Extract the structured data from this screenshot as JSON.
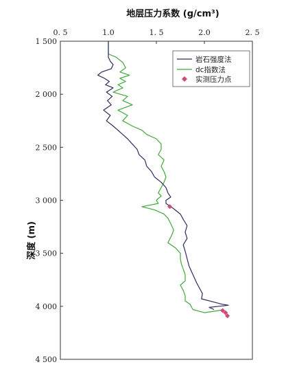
{
  "chart_data": {
    "type": "line",
    "title": "地层压力系数 (g/cm³)",
    "ylabel": "深度 (m)",
    "xlabel_position": "top",
    "xlim": [
      0.5,
      2.5
    ],
    "ylim": [
      1500,
      4500
    ],
    "y_inverted": true,
    "grid": false,
    "legend_position": "top-right",
    "x_ticks": [
      {
        "value": 0.5,
        "label": "0. 5"
      },
      {
        "value": 1.0,
        "label": "1.0"
      },
      {
        "value": 1.5,
        "label": "1. 5"
      },
      {
        "value": 2.0,
        "label": "2.0"
      },
      {
        "value": 2.5,
        "label": "2. 5"
      }
    ],
    "y_ticks": [
      {
        "value": 1500,
        "label": "1 500"
      },
      {
        "value": 2000,
        "label": "2 000"
      },
      {
        "value": 2500,
        "label": "2 500"
      },
      {
        "value": 3000,
        "label": "3 000"
      },
      {
        "value": 3500,
        "label": "3 500"
      },
      {
        "value": 4000,
        "label": "4 000"
      },
      {
        "value": 4500,
        "label": "4 500"
      }
    ],
    "series": [
      {
        "name": "岩石强度法",
        "color": "#2b2a5e",
        "points": [
          [
            1.0,
            1500
          ],
          [
            1.0,
            1650
          ],
          [
            1.02,
            1690
          ],
          [
            1.05,
            1720
          ],
          [
            1.03,
            1760
          ],
          [
            0.93,
            1790
          ],
          [
            0.89,
            1820
          ],
          [
            0.96,
            1850
          ],
          [
            1.01,
            1880
          ],
          [
            0.97,
            1910
          ],
          [
            1.05,
            1940
          ],
          [
            0.98,
            1980
          ],
          [
            1.04,
            2020
          ],
          [
            0.99,
            2060
          ],
          [
            1.03,
            2100
          ],
          [
            0.95,
            2150
          ],
          [
            1.02,
            2200
          ],
          [
            0.98,
            2250
          ],
          [
            1.05,
            2300
          ],
          [
            1.1,
            2340
          ],
          [
            1.15,
            2380
          ],
          [
            1.2,
            2420
          ],
          [
            1.25,
            2470
          ],
          [
            1.3,
            2520
          ],
          [
            1.32,
            2570
          ],
          [
            1.38,
            2620
          ],
          [
            1.4,
            2680
          ],
          [
            1.45,
            2730
          ],
          [
            1.48,
            2780
          ],
          [
            1.55,
            2830
          ],
          [
            1.6,
            2880
          ],
          [
            1.62,
            2930
          ],
          [
            1.65,
            2970
          ],
          [
            1.6,
            3000
          ],
          [
            1.6,
            3030
          ],
          [
            1.68,
            3080
          ],
          [
            1.75,
            3130
          ],
          [
            1.78,
            3180
          ],
          [
            1.82,
            3240
          ],
          [
            1.8,
            3300
          ],
          [
            1.82,
            3360
          ],
          [
            1.78,
            3420
          ],
          [
            1.8,
            3480
          ],
          [
            1.82,
            3550
          ],
          [
            1.84,
            3620
          ],
          [
            1.88,
            3700
          ],
          [
            1.92,
            3780
          ],
          [
            1.95,
            3830
          ],
          [
            1.98,
            3880
          ],
          [
            1.97,
            3930
          ],
          [
            2.1,
            3960
          ],
          [
            2.18,
            3980
          ],
          [
            2.25,
            3990
          ],
          [
            2.15,
            4000
          ],
          [
            2.05,
            4010
          ],
          [
            2.1,
            4030
          ]
        ]
      },
      {
        "name": "dc指数法",
        "color": "#3fa83a",
        "points": [
          [
            1.0,
            1500
          ],
          [
            1.0,
            1620
          ],
          [
            1.08,
            1650
          ],
          [
            1.15,
            1700
          ],
          [
            1.18,
            1750
          ],
          [
            1.12,
            1790
          ],
          [
            1.22,
            1820
          ],
          [
            1.12,
            1850
          ],
          [
            1.18,
            1880
          ],
          [
            1.1,
            1910
          ],
          [
            1.15,
            1940
          ],
          [
            1.05,
            1980
          ],
          [
            1.2,
            2020
          ],
          [
            1.15,
            2060
          ],
          [
            1.25,
            2100
          ],
          [
            1.1,
            2150
          ],
          [
            1.2,
            2200
          ],
          [
            1.15,
            2250
          ],
          [
            1.25,
            2300
          ],
          [
            1.35,
            2340
          ],
          [
            1.4,
            2380
          ],
          [
            1.5,
            2420
          ],
          [
            1.55,
            2470
          ],
          [
            1.55,
            2520
          ],
          [
            1.52,
            2570
          ],
          [
            1.58,
            2620
          ],
          [
            1.55,
            2680
          ],
          [
            1.58,
            2730
          ],
          [
            1.6,
            2780
          ],
          [
            1.58,
            2830
          ],
          [
            1.55,
            2880
          ],
          [
            1.52,
            2930
          ],
          [
            1.55,
            2960
          ],
          [
            1.5,
            3000
          ],
          [
            1.52,
            3030
          ],
          [
            1.35,
            3060
          ],
          [
            1.48,
            3090
          ],
          [
            1.58,
            3130
          ],
          [
            1.62,
            3170
          ],
          [
            1.65,
            3220
          ],
          [
            1.68,
            3280
          ],
          [
            1.66,
            3330
          ],
          [
            1.62,
            3400
          ],
          [
            1.7,
            3450
          ],
          [
            1.75,
            3500
          ],
          [
            1.75,
            3550
          ],
          [
            1.76,
            3600
          ],
          [
            1.78,
            3650
          ],
          [
            1.8,
            3700
          ],
          [
            1.8,
            3760
          ],
          [
            1.75,
            3800
          ],
          [
            1.78,
            3850
          ],
          [
            1.8,
            3900
          ],
          [
            1.8,
            3950
          ],
          [
            1.85,
            3980
          ],
          [
            1.88,
            4030
          ],
          [
            2.0,
            4060
          ],
          [
            2.15,
            4040
          ],
          [
            2.2,
            4030
          ]
        ]
      }
    ],
    "measured": {
      "name": "实测压力点",
      "color": "#d04a78",
      "points": [
        [
          1.64,
          3060
        ],
        [
          2.19,
          4040
        ],
        [
          2.22,
          4060
        ],
        [
          2.24,
          4090
        ]
      ]
    }
  }
}
